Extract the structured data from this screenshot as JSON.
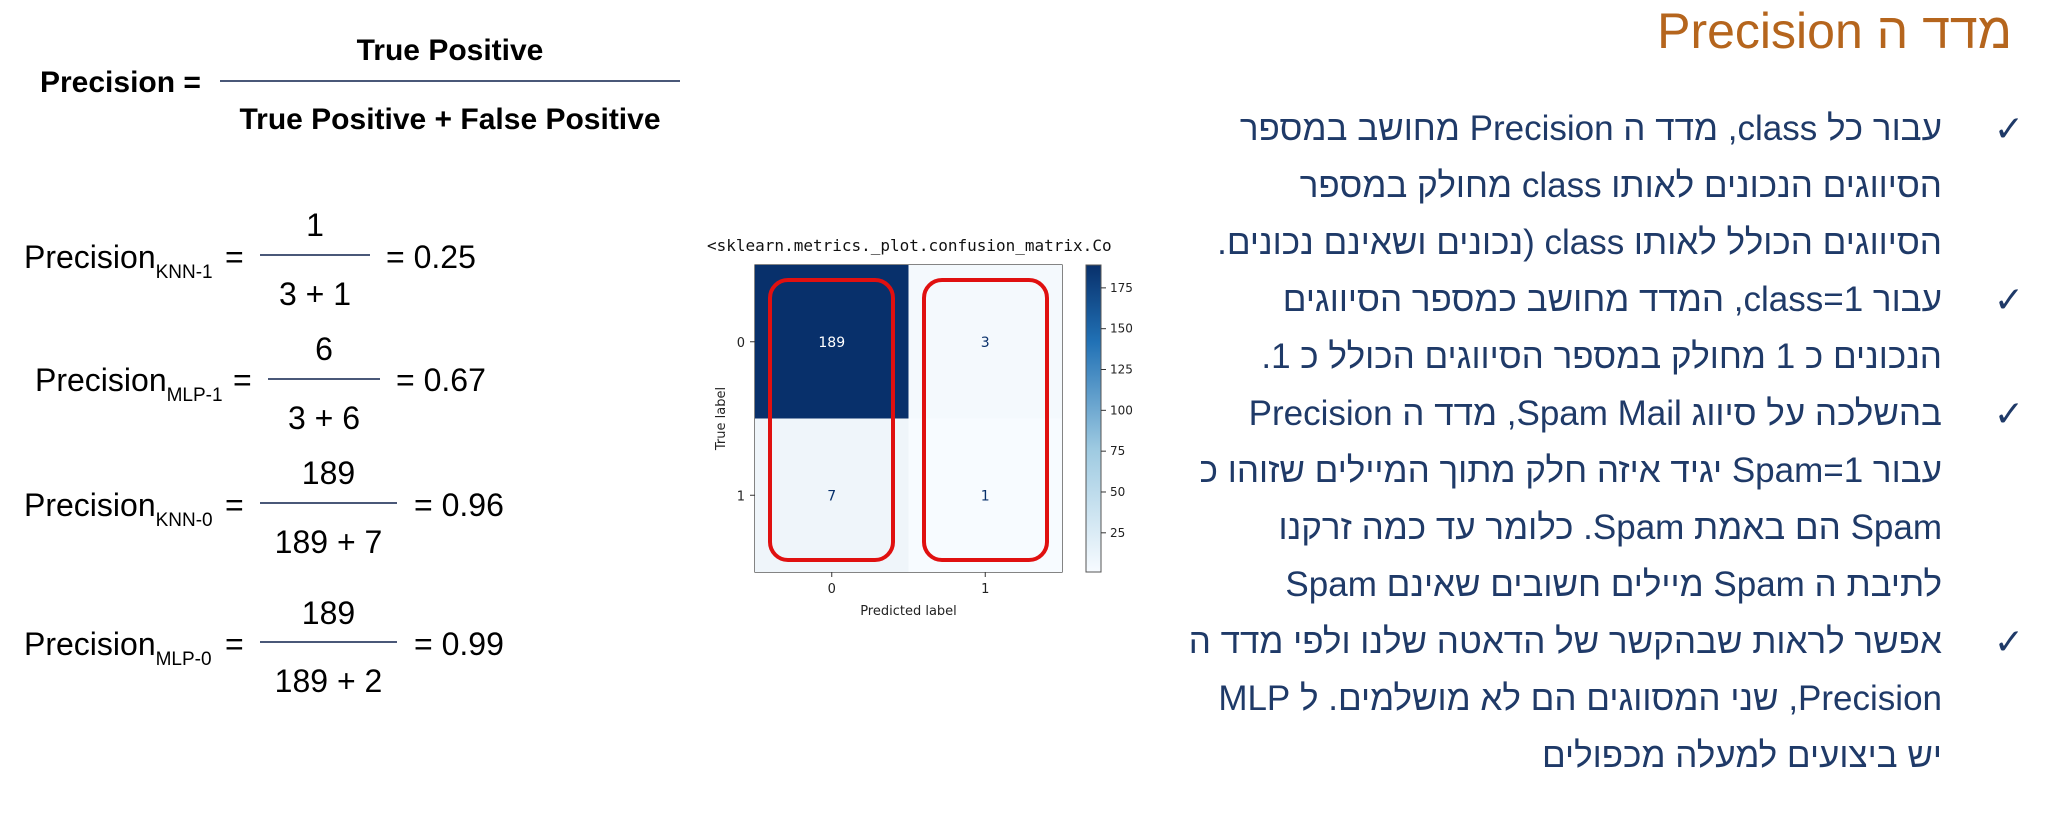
{
  "title": "מדד ה Precision",
  "bullets": [
    {
      "lines": [
        "עבור כל class, מדד ה Precision מחושב במספר",
        "הסיווגים הנכונים לאותו class מחולק במספר",
        "הסיווגים הכולל לאותו class (נכונים ושאינם נכונים."
      ]
    },
    {
      "lines": [
        "עבור class=1, המדד מחושב כמספר הסיווגים",
        "הנכונים כ 1 מחולק במספר הסיווגים הכולל כ 1."
      ]
    },
    {
      "lines": [
        "בהשלכה על סיווג Spam Mail, מדד ה Precision",
        "עבור Spam=1 יגיד איזה חלק מתוך המיילים שזוהו כ",
        "Spam הם באמת Spam. כלומר עד כמה זרקנו",
        "לתיבת ה Spam מיילים חשובים שאינם Spam"
      ]
    },
    {
      "lines": [
        "אפשר לראות שבהקשר של הדאטה שלנו ולפי מדד ה",
        "Precision, שני המסווגים הם לא מושלמים. ל MLP",
        "יש ביצועים למעלה מכפולים"
      ]
    }
  ],
  "check_icon": "✓",
  "main_formula": {
    "lhs": "Precision =",
    "numerator": "True Positive",
    "denominator": "True Positive + False Positive"
  },
  "formulas": [
    {
      "base": "Precision",
      "sub": "KNN-1",
      "eq": "=",
      "numerator": "1",
      "denominator": "3 + 1",
      "result": "= 0.25"
    },
    {
      "base": "Precision",
      "sub": "MLP-1",
      "eq": "=",
      "numerator": "6",
      "denominator": "3 + 6",
      "result": "= 0.67"
    },
    {
      "base": "Precision",
      "sub": "KNN-0",
      "eq": "=",
      "numerator": "189",
      "denominator": "189 + 7",
      "result": "= 0.96"
    },
    {
      "base": "Precision",
      "sub": "MLP-0",
      "eq": "=",
      "numerator": "189",
      "denominator": "189 + 2",
      "result": "= 0.99"
    }
  ],
  "confusion_matrix": {
    "header": "<sklearn.metrics._plot.confusion_matrix.Co",
    "xlabel": "Predicted label",
    "ylabel": "True label",
    "x_ticks": [
      "0",
      "1"
    ],
    "y_ticks": [
      "0",
      "1"
    ],
    "cells": [
      [
        189,
        3
      ],
      [
        7,
        1
      ]
    ],
    "cell_labels": [
      "189",
      "3",
      "7",
      "1"
    ],
    "colorbar_ticks": [
      "175",
      "150",
      "125",
      "100",
      "75",
      "50",
      "25"
    ],
    "colorbar_values": [
      175,
      150,
      125,
      100,
      75,
      50,
      25
    ],
    "colorbar_range": [
      1,
      189
    ],
    "colors": {
      "high": "#08306b",
      "low": "#f7fbff",
      "highlight": "#e01010"
    }
  }
}
